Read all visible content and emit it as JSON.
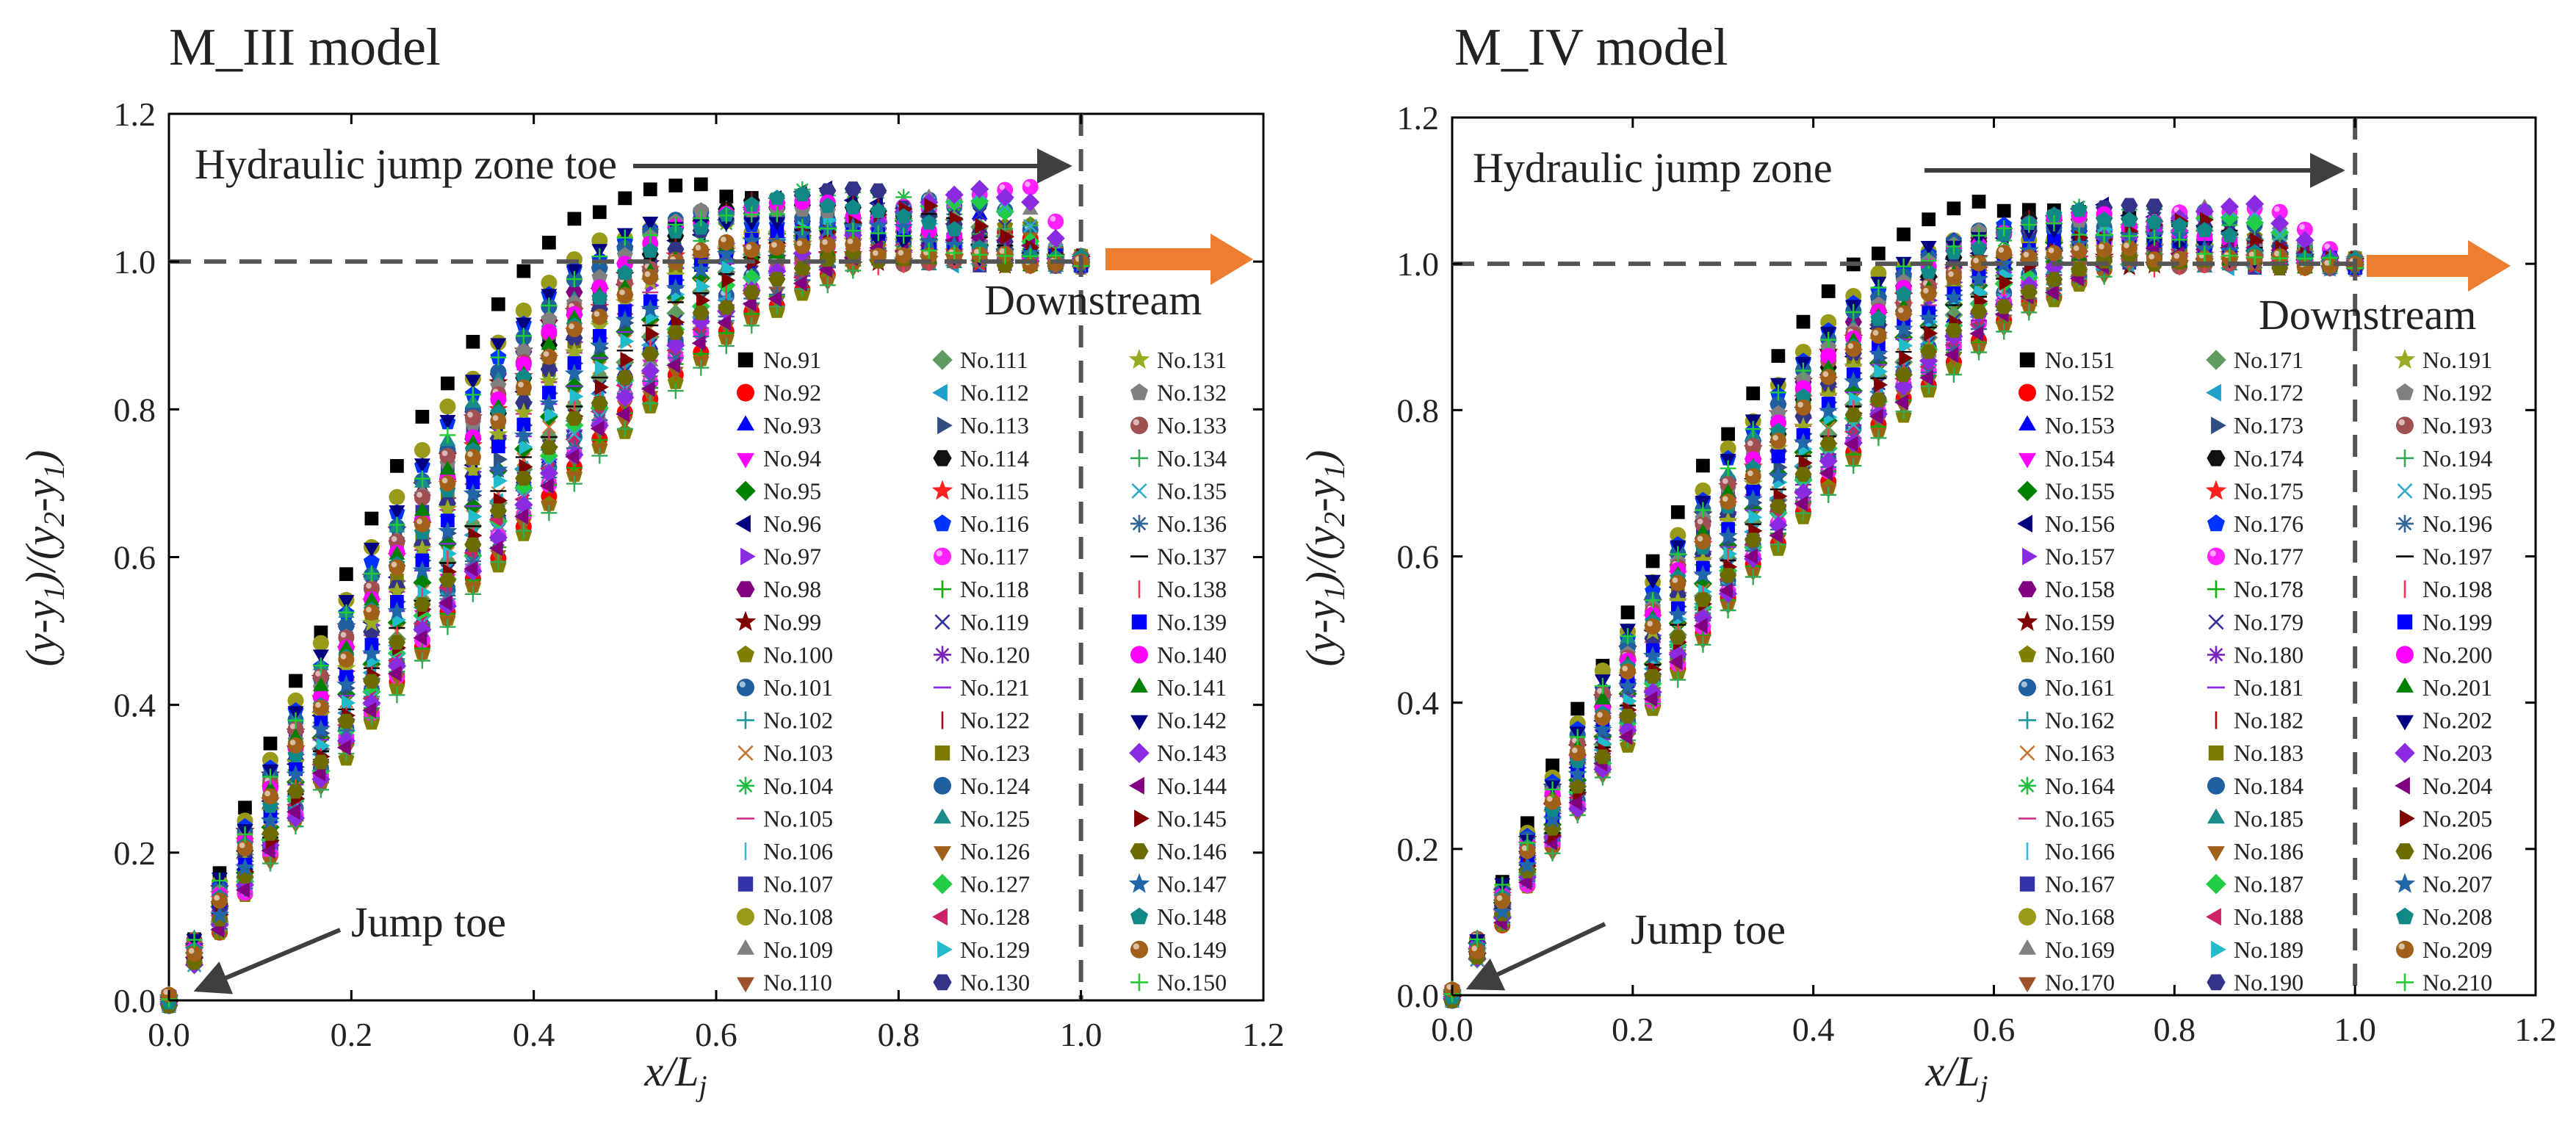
{
  "chart_data": [
    {
      "type": "scatter",
      "title": "M_III model",
      "xlabel": "x/L",
      "xlabel_sub": "j",
      "ylabel_parts": [
        "(y-y",
        "1",
        ")/(y",
        "2",
        "-y",
        "1",
        ")"
      ],
      "xlim": [
        0.0,
        1.2
      ],
      "ylim": [
        0.0,
        1.2
      ],
      "xticks": [
        "0.0",
        "0.2",
        "0.4",
        "0.6",
        "0.8",
        "1.0",
        "1.2"
      ],
      "yticks": [
        "0.0",
        "0.2",
        "0.4",
        "0.6",
        "0.8",
        "1.0",
        "1.2"
      ],
      "reference_lines": {
        "vertical_x": 1.0,
        "horizontal_y": 1.0
      },
      "annotations": {
        "jump_zone": "Hydraulic jump zone toe",
        "downstream": "Downstream",
        "jump_toe": "Jump toe"
      },
      "curve_envelope": {
        "peak_y_min": 1.0,
        "peak_y_max": 1.1,
        "peak_x_min": 0.55,
        "peak_x_max": 0.95,
        "end_point": [
          1.0,
          1.0
        ]
      },
      "series": [
        "No.91",
        "No.92",
        "No.93",
        "No.94",
        "No.95",
        "No.96",
        "No.97",
        "No.98",
        "No.99",
        "No.100",
        "No.101",
        "No.102",
        "No.103",
        "No.104",
        "No.105",
        "No.106",
        "No.107",
        "No.108",
        "No.109",
        "No.110",
        "No.111",
        "No.112",
        "No.113",
        "No.114",
        "No.115",
        "No.116",
        "No.117",
        "No.118",
        "No.119",
        "No.120",
        "No.121",
        "No.122",
        "No.123",
        "No.124",
        "No.125",
        "No.126",
        "No.127",
        "No.128",
        "No.129",
        "No.130",
        "No.131",
        "No.132",
        "No.133",
        "No.134",
        "No.135",
        "No.136",
        "No.137",
        "No.138",
        "No.139",
        "No.140",
        "No.141",
        "No.142",
        "No.143",
        "No.144",
        "No.145",
        "No.146",
        "No.147",
        "No.148",
        "No.149",
        "No.150"
      ]
    },
    {
      "type": "scatter",
      "title": "M_IV model",
      "xlabel": "x/L",
      "xlabel_sub": "j",
      "ylabel_parts": [
        "(y-y",
        "1",
        ")/(y",
        "2",
        "-y",
        "1",
        ")"
      ],
      "xlim": [
        0.0,
        1.2
      ],
      "ylim": [
        0.0,
        1.2
      ],
      "xticks": [
        "0.0",
        "0.2",
        "0.4",
        "0.6",
        "0.8",
        "1.0",
        "1.2"
      ],
      "yticks": [
        "0.0",
        "0.2",
        "0.4",
        "0.6",
        "0.8",
        "1.0",
        "1.2"
      ],
      "reference_lines": {
        "vertical_x": 1.0,
        "horizontal_y": 1.0
      },
      "annotations": {
        "jump_zone": "Hydraulic jump zone",
        "downstream": "Downstream",
        "jump_toe": "Jump toe"
      },
      "curve_envelope": {
        "peak_y_min": 1.0,
        "peak_y_max": 1.08,
        "peak_x_min": 0.6,
        "peak_x_max": 0.9,
        "end_point": [
          1.0,
          1.0
        ]
      },
      "series": [
        "No.151",
        "No.152",
        "No.153",
        "No.154",
        "No.155",
        "No.156",
        "No.157",
        "No.158",
        "No.159",
        "No.160",
        "No.161",
        "No.162",
        "No.163",
        "No.164",
        "No.165",
        "No.166",
        "No.167",
        "No.168",
        "No.169",
        "No.170",
        "No.171",
        "No.172",
        "No.173",
        "No.174",
        "No.175",
        "No.176",
        "No.177",
        "No.178",
        "No.179",
        "No.180",
        "No.181",
        "No.182",
        "No.183",
        "No.184",
        "No.185",
        "No.186",
        "No.187",
        "No.188",
        "No.189",
        "No.190",
        "No.191",
        "No.192",
        "No.193",
        "No.194",
        "No.195",
        "No.196",
        "No.197",
        "No.198",
        "No.199",
        "No.200",
        "No.201",
        "No.202",
        "No.203",
        "No.204",
        "No.205",
        "No.206",
        "No.207",
        "No.208",
        "No.209",
        "No.210"
      ]
    }
  ],
  "series_styles": [
    {
      "color": "#000000",
      "marker": "square"
    },
    {
      "color": "#ff0000",
      "marker": "circle"
    },
    {
      "color": "#0000ff",
      "marker": "triangle-up"
    },
    {
      "color": "#ff00ff",
      "marker": "triangle-down"
    },
    {
      "color": "#008000",
      "marker": "diamond"
    },
    {
      "color": "#000080",
      "marker": "triangle-left"
    },
    {
      "color": "#8a2be2",
      "marker": "triangle-right"
    },
    {
      "color": "#800080",
      "marker": "hexagon"
    },
    {
      "color": "#800000",
      "marker": "star"
    },
    {
      "color": "#808000",
      "marker": "pentagon"
    },
    {
      "color": "#1f5fa0",
      "marker": "sphere"
    },
    {
      "color": "#1a9a9a",
      "marker": "plus"
    },
    {
      "color": "#c87533",
      "marker": "cross"
    },
    {
      "color": "#22bb44",
      "marker": "asterisk"
    },
    {
      "color": "#cc3388",
      "marker": "hline"
    },
    {
      "color": "#33bbdd",
      "marker": "vline"
    },
    {
      "color": "#3333aa",
      "marker": "square"
    },
    {
      "color": "#9a9a1a",
      "marker": "circle"
    },
    {
      "color": "#808080",
      "marker": "triangle-up"
    },
    {
      "color": "#a0522d",
      "marker": "triangle-down"
    },
    {
      "color": "#5f9a5f",
      "marker": "diamond"
    },
    {
      "color": "#1ea0c8",
      "marker": "triangle-left"
    },
    {
      "color": "#2f4f7f",
      "marker": "triangle-right"
    },
    {
      "color": "#111111",
      "marker": "hexagon"
    },
    {
      "color": "#ff2020",
      "marker": "star"
    },
    {
      "color": "#0033ff",
      "marker": "pentagon"
    },
    {
      "color": "#ff22ff",
      "marker": "sphere"
    },
    {
      "color": "#11aa11",
      "marker": "plus"
    },
    {
      "color": "#333399",
      "marker": "cross"
    },
    {
      "color": "#7722bb",
      "marker": "asterisk"
    },
    {
      "color": "#8a2be2",
      "marker": "hline"
    },
    {
      "color": "#a01010",
      "marker": "vline"
    },
    {
      "color": "#7a7a00",
      "marker": "square"
    },
    {
      "color": "#1f5fa0",
      "marker": "circle"
    },
    {
      "color": "#1a8a8a",
      "marker": "triangle-up"
    },
    {
      "color": "#a0601a",
      "marker": "triangle-down"
    },
    {
      "color": "#22cc44",
      "marker": "diamond"
    },
    {
      "color": "#cc2266",
      "marker": "triangle-left"
    },
    {
      "color": "#22bbcc",
      "marker": "triangle-right"
    },
    {
      "color": "#333388",
      "marker": "hexagon"
    },
    {
      "color": "#9aaa22",
      "marker": "star"
    },
    {
      "color": "#808080",
      "marker": "pentagon"
    },
    {
      "color": "#a05050",
      "marker": "sphere"
    },
    {
      "color": "#33aa55",
      "marker": "plus"
    },
    {
      "color": "#33aacc",
      "marker": "cross"
    },
    {
      "color": "#336699",
      "marker": "asterisk"
    },
    {
      "color": "#000000",
      "marker": "hline"
    },
    {
      "color": "#ff3355",
      "marker": "vline"
    },
    {
      "color": "#0000ff",
      "marker": "square"
    },
    {
      "color": "#ff00ff",
      "marker": "circle"
    },
    {
      "color": "#008000",
      "marker": "triangle-up"
    },
    {
      "color": "#000080",
      "marker": "triangle-down"
    },
    {
      "color": "#8a2be2",
      "marker": "diamond"
    },
    {
      "color": "#800080",
      "marker": "triangle-left"
    },
    {
      "color": "#800000",
      "marker": "triangle-right"
    },
    {
      "color": "#6b6b00",
      "marker": "hexagon"
    },
    {
      "color": "#2266aa",
      "marker": "star"
    },
    {
      "color": "#118888",
      "marker": "pentagon"
    },
    {
      "color": "#a0601a",
      "marker": "sphere"
    },
    {
      "color": "#22cc33",
      "marker": "plus"
    }
  ],
  "colors": {
    "arrow": "#ed7d31",
    "reference_line": "#555555",
    "annot_arrow": "#3f3f3f"
  }
}
